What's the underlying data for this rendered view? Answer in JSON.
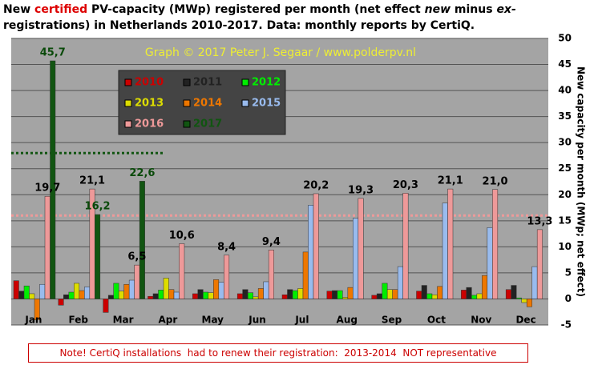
{
  "chart_data": {
    "type": "bar",
    "title": [
      "New ",
      "certified",
      " PV-capacity (MWp) registered per month (net effect ",
      "new",
      " minus ",
      "ex-",
      "registrations) in Netherlands 2010-2017. Data: monthly reports by CertiQ."
    ],
    "watermark": "Graph © 2017 Peter J. Segaar / www.polderpv.nl",
    "y_axis_label": "New capacity per month (MWp; net effect)",
    "note": "Note! CertiQ installations  had to renew their registration:  2013-2014  NOT representative",
    "categories": [
      "Jan",
      "Feb",
      "Mar",
      "Apr",
      "May",
      "Jun",
      "Jul",
      "Aug",
      "Sep",
      "Oct",
      "Nov",
      "Dec"
    ],
    "series": [
      {
        "name": "2010",
        "color": "#cc0000",
        "values": [
          3.5,
          -1.2,
          -2.6,
          0.5,
          1.0,
          1.0,
          0.8,
          1.5,
          0.7,
          1.5,
          1.7,
          1.8
        ]
      },
      {
        "name": "2011",
        "color": "#222222",
        "values": [
          1.5,
          0.8,
          0.7,
          1.0,
          1.8,
          1.8,
          1.8,
          1.6,
          1.0,
          2.6,
          2.2,
          2.6
        ]
      },
      {
        "name": "2012",
        "color": "#00ee00",
        "values": [
          2.5,
          1.3,
          3.0,
          1.7,
          1.3,
          1.2,
          1.6,
          1.6,
          3.0,
          1.0,
          0.7,
          0.2
        ]
      },
      {
        "name": "2013",
        "color": "#dddd00",
        "values": [
          1.0,
          3.0,
          1.5,
          4.0,
          1.2,
          0.4,
          2.0,
          0.3,
          1.8,
          0.8,
          1.0,
          -0.7
        ]
      },
      {
        "name": "2014",
        "color": "#ee7700",
        "values": [
          -4.0,
          1.6,
          2.8,
          1.8,
          3.7,
          2.0,
          9.0,
          2.2,
          1.8,
          2.4,
          4.5,
          -1.5
        ]
      },
      {
        "name": "2015",
        "color": "#99bbee",
        "values": [
          2.8,
          2.3,
          3.6,
          1.3,
          3.2,
          3.3,
          18.0,
          15.5,
          6.2,
          18.4,
          13.7,
          6.2
        ]
      },
      {
        "name": "2016",
        "color": "#ee9999",
        "values": [
          19.7,
          21.1,
          6.5,
          10.6,
          8.4,
          9.4,
          20.2,
          19.3,
          20.3,
          21.1,
          21.0,
          13.3
        ],
        "value_labels": [
          "19,7",
          "21,1",
          "6,5",
          "10,6",
          "8,4",
          "9,4",
          "20,2",
          "19,3",
          "20,3",
          "21,1",
          "21,0",
          "13,3"
        ]
      },
      {
        "name": "2017",
        "color": "#115511",
        "values": [
          45.7,
          16.2,
          22.6,
          null,
          null,
          null,
          null,
          null,
          null,
          null,
          null,
          null
        ],
        "value_labels": [
          "45,7",
          "16,2",
          "22,6",
          null,
          null,
          null,
          null,
          null,
          null,
          null,
          null,
          null
        ]
      }
    ],
    "reference_lines": [
      {
        "value": 28,
        "color": "#115511"
      },
      {
        "value": 16,
        "color": "#ee9999"
      }
    ],
    "ylim": [
      -5,
      50
    ],
    "yticks": [
      -5,
      0,
      5,
      10,
      15,
      20,
      25,
      30,
      35,
      40,
      45,
      50
    ],
    "grid": true
  }
}
